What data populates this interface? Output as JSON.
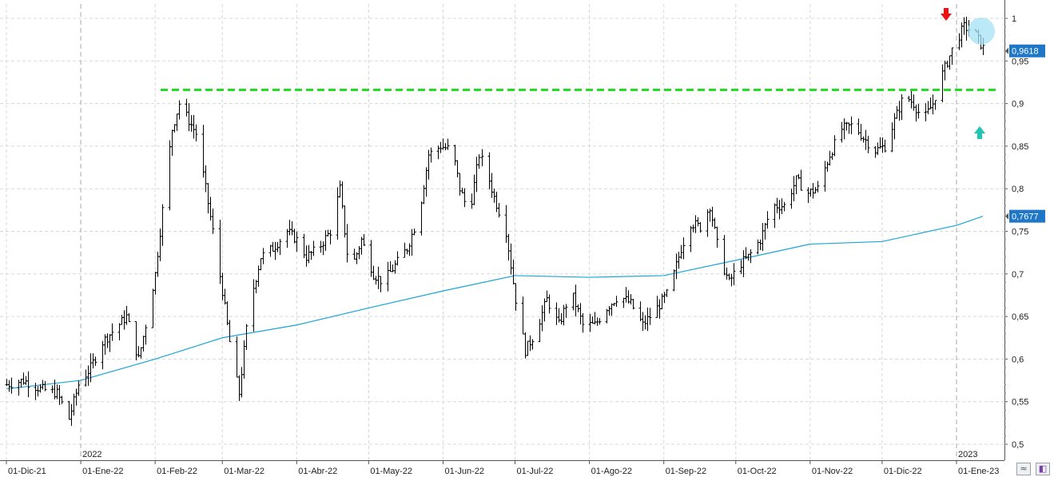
{
  "chart_data": {
    "type": "bar",
    "style": "ohlc",
    "x_tick_labels": [
      "01-Dic-21",
      "01-Ene-22",
      "01-Feb-22",
      "01-Mar-22",
      "01-Abr-22",
      "01-May-22",
      "01-Jun-22",
      "01-Jul-22",
      "01-Ago-22",
      "01-Sep-22",
      "01-Oct-22",
      "01-Nov-22",
      "01-Dic-22",
      "01-Ene-23"
    ],
    "year_labels": [
      "2022",
      "2023"
    ],
    "y_ticks": [
      0.5,
      0.55,
      0.6,
      0.65,
      0.7,
      0.75,
      0.8,
      0.85,
      0.9,
      0.95,
      1
    ],
    "y_tick_labels": [
      "0,5",
      "0,55",
      "0,6",
      "0,65",
      "0,7",
      "0,75",
      "0,8",
      "0,85",
      "0,9",
      "0,95",
      "1"
    ],
    "ylim": [
      0.49,
      1.02
    ],
    "grid": true,
    "price_tags": [
      {
        "label": "0,9618",
        "value": 0.9618,
        "color": "#1f77c8",
        "series": "price"
      },
      {
        "label": "0,7677",
        "value": 0.7677,
        "color": "#1f77c8",
        "series": "moving-average"
      }
    ],
    "resistance_level": 0.916,
    "resistance_color": "#22dd22",
    "price_color": "#000000",
    "ma_color": "#1aa6d6",
    "price_anchors": [
      [
        "01-Dic-21",
        0.57
      ],
      [
        "08-Dic-21",
        0.575
      ],
      [
        "15-Dic-21",
        0.565
      ],
      [
        "22-Dic-21",
        0.56
      ],
      [
        "27-Dic-21",
        0.53
      ],
      [
        "31-Dic-21",
        0.57
      ],
      [
        "05-Ene-22",
        0.59
      ],
      [
        "10-Ene-22",
        0.62
      ],
      [
        "15-Ene-22",
        0.635
      ],
      [
        "20-Ene-22",
        0.65
      ],
      [
        "25-Ene-22",
        0.6
      ],
      [
        "28-Ene-22",
        0.64
      ],
      [
        "01-Feb-22",
        0.7
      ],
      [
        "05-Feb-22",
        0.8
      ],
      [
        "08-Feb-22",
        0.87
      ],
      [
        "11-Feb-22",
        0.9
      ],
      [
        "15-Feb-22",
        0.88
      ],
      [
        "18-Feb-22",
        0.865
      ],
      [
        "22-Feb-22",
        0.8
      ],
      [
        "25-Feb-22",
        0.75
      ],
      [
        "01-Mar-22",
        0.68
      ],
      [
        "05-Mar-22",
        0.6
      ],
      [
        "08-Mar-22",
        0.56
      ],
      [
        "12-Mar-22",
        0.66
      ],
      [
        "17-Mar-22",
        0.72
      ],
      [
        "22-Mar-22",
        0.73
      ],
      [
        "28-Mar-22",
        0.75
      ],
      [
        "01-Abr-22",
        0.74
      ],
      [
        "05-Abr-22",
        0.72
      ],
      [
        "10-Abr-22",
        0.73
      ],
      [
        "15-Abr-22",
        0.75
      ],
      [
        "19-Abr-22",
        0.8
      ],
      [
        "23-Abr-22",
        0.7
      ],
      [
        "28-Abr-22",
        0.74
      ],
      [
        "03-May-22",
        0.7
      ],
      [
        "07-May-22",
        0.69
      ],
      [
        "12-May-22",
        0.71
      ],
      [
        "17-May-22",
        0.73
      ],
      [
        "22-May-22",
        0.77
      ],
      [
        "26-May-22",
        0.84
      ],
      [
        "31-May-22",
        0.85
      ],
      [
        "05-Jun-22",
        0.845
      ],
      [
        "08-Jun-22",
        0.8
      ],
      [
        "12-Jun-22",
        0.77
      ],
      [
        "16-Jun-22",
        0.84
      ],
      [
        "19-Jun-22",
        0.82
      ],
      [
        "22-Jun-22",
        0.79
      ],
      [
        "27-Jun-22",
        0.75
      ],
      [
        "01-Jul-22",
        0.67
      ],
      [
        "05-Jul-22",
        0.61
      ],
      [
        "09-Jul-22",
        0.63
      ],
      [
        "14-Jul-22",
        0.67
      ],
      [
        "19-Jul-22",
        0.64
      ],
      [
        "24-Jul-22",
        0.68
      ],
      [
        "29-Jul-22",
        0.64
      ],
      [
        "03-Ago-22",
        0.64
      ],
      [
        "08-Ago-22",
        0.66
      ],
      [
        "13-Ago-22",
        0.675
      ],
      [
        "18-Ago-22",
        0.665
      ],
      [
        "23-Ago-22",
        0.64
      ],
      [
        "29-Ago-22",
        0.66
      ],
      [
        "03-Sep-22",
        0.68
      ],
      [
        "08-Sep-22",
        0.73
      ],
      [
        "12-Sep-22",
        0.76
      ],
      [
        "16-Sep-22",
        0.755
      ],
      [
        "20-Sep-22",
        0.78
      ],
      [
        "24-Sep-22",
        0.72
      ],
      [
        "28-Sep-22",
        0.69
      ],
      [
        "02-Oct-22",
        0.71
      ],
      [
        "06-Oct-22",
        0.72
      ],
      [
        "11-Oct-22",
        0.74
      ],
      [
        "16-Oct-22",
        0.78
      ],
      [
        "21-Oct-22",
        0.78
      ],
      [
        "26-Oct-22",
        0.81
      ],
      [
        "31-Oct-22",
        0.795
      ],
      [
        "04-Nov-22",
        0.8
      ],
      [
        "09-Nov-22",
        0.84
      ],
      [
        "14-Nov-22",
        0.87
      ],
      [
        "19-Nov-22",
        0.875
      ],
      [
        "23-Nov-22",
        0.86
      ],
      [
        "28-Nov-22",
        0.845
      ],
      [
        "02-Dic-22",
        0.85
      ],
      [
        "06-Dic-22",
        0.88
      ],
      [
        "10-Dic-22",
        0.91
      ],
      [
        "14-Dic-22",
        0.9
      ],
      [
        "18-Dic-22",
        0.88
      ],
      [
        "22-Dic-22",
        0.9
      ],
      [
        "26-Dic-22",
        0.935
      ],
      [
        "31-Dic-22",
        0.97
      ],
      [
        "04-Ene-23",
        0.99
      ],
      [
        "08-Ene-23",
        0.985
      ],
      [
        "12-Ene-23",
        0.965
      ]
    ],
    "ma_anchors": [
      [
        "01-Dic-21",
        0.565
      ],
      [
        "01-Ene-22",
        0.575
      ],
      [
        "01-Feb-22",
        0.6
      ],
      [
        "01-Mar-22",
        0.625
      ],
      [
        "01-Abr-22",
        0.64
      ],
      [
        "01-May-22",
        0.66
      ],
      [
        "01-Jun-22",
        0.68
      ],
      [
        "01-Jul-22",
        0.698
      ],
      [
        "01-Ago-22",
        0.696
      ],
      [
        "01-Sep-22",
        0.698
      ],
      [
        "01-Oct-22",
        0.716
      ],
      [
        "01-Nov-22",
        0.735
      ],
      [
        "01-Dic-22",
        0.738
      ],
      [
        "01-Ene-23",
        0.757
      ],
      [
        "12-Ene-23",
        0.7677
      ]
    ]
  },
  "markers": {
    "sell_arrow": {
      "direction": "down",
      "color": "#ee1111",
      "icon": "red-down-arrow-icon"
    },
    "buy_arrow": {
      "direction": "up",
      "color": "#22c4b4",
      "icon": "teal-up-arrow-icon"
    },
    "highlight_circle_color": "#a6e2f4"
  },
  "corner_buttons": {
    "pattern_icon": "wave-pattern-icon",
    "bookmark_icon": "bookmark-icon"
  }
}
